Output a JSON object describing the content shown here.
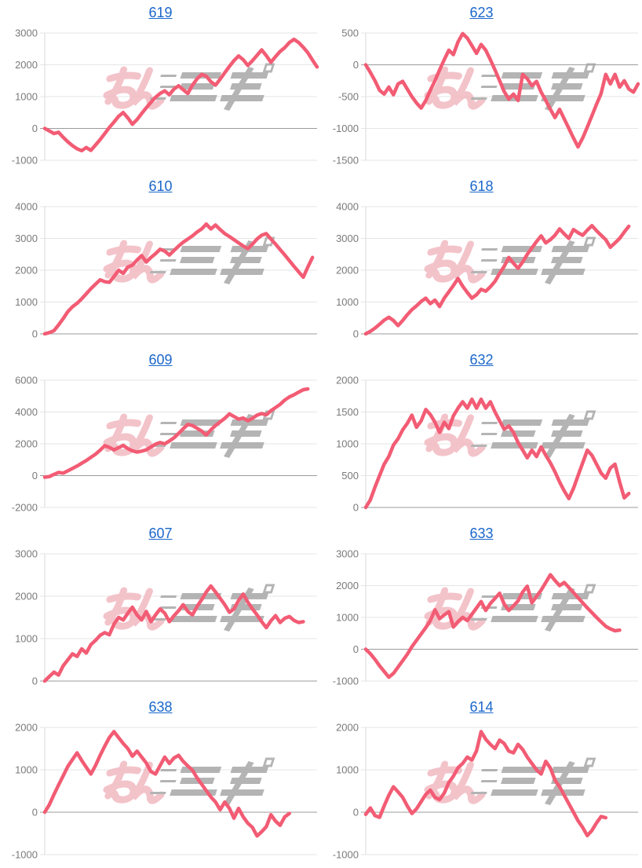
{
  "page": {
    "background": "#ffffff"
  },
  "colors": {
    "line": "#f25c74",
    "title_link": "#1b67ca",
    "tick_label": "#7a7a7a",
    "grid_line": "#e5e5e5",
    "zero_line": "#9b9b9b",
    "axis_line": "#d9d9d9",
    "watermark_pink": "#f2b9c1",
    "watermark_gray": "#a7a7a7"
  },
  "watermark": {
    "left_text": "みん",
    "style": "pink kana + gray speed-lined logo glyphs"
  },
  "chart_data": [
    {
      "type": "line",
      "title": "619",
      "ylim": [
        -1000,
        3000
      ],
      "yticks": [
        3000,
        2000,
        1000,
        0,
        -1000
      ],
      "grid": true,
      "x_axis_labels": "none",
      "legend": "none",
      "values": [
        0,
        -80,
        -160,
        -120,
        -280,
        -420,
        -540,
        -640,
        -700,
        -600,
        -690,
        -520,
        -350,
        -160,
        30,
        200,
        380,
        500,
        330,
        130,
        280,
        470,
        650,
        820,
        980,
        1100,
        1180,
        1060,
        1240,
        1340,
        1220,
        1100,
        1360,
        1560,
        1700,
        1640,
        1470,
        1360,
        1550,
        1750,
        1950,
        2130,
        2280,
        2160,
        1980,
        2130,
        2300,
        2470,
        2290,
        2080,
        2260,
        2420,
        2540,
        2700,
        2800,
        2700,
        2550,
        2380,
        2150,
        1930
      ]
    },
    {
      "type": "line",
      "title": "623",
      "ylim": [
        -1500,
        500
      ],
      "yticks": [
        500,
        0,
        -500,
        -1000,
        -1500
      ],
      "grid": true,
      "x_axis_labels": "none",
      "legend": "none",
      "values": [
        0,
        -120,
        -250,
        -400,
        -460,
        -350,
        -470,
        -300,
        -260,
        -380,
        -500,
        -600,
        -680,
        -560,
        -400,
        -250,
        -80,
        80,
        230,
        160,
        360,
        490,
        420,
        300,
        180,
        320,
        230,
        80,
        -80,
        -250,
        -420,
        -540,
        -460,
        -560,
        -150,
        -220,
        -330,
        -260,
        -430,
        -560,
        -700,
        -830,
        -700,
        -850,
        -1000,
        -1150,
        -1290,
        -1150,
        -980,
        -800,
        -620,
        -450,
        -150,
        -300,
        -150,
        -350,
        -250,
        -380,
        -430,
        -300
      ]
    },
    {
      "type": "line",
      "title": "610",
      "ylim": [
        0,
        4000
      ],
      "yticks": [
        4000,
        3000,
        2000,
        1000,
        0
      ],
      "grid": true,
      "x_axis_labels": "none",
      "legend": "none",
      "values": [
        0,
        40,
        100,
        280,
        480,
        700,
        850,
        960,
        1100,
        1260,
        1420,
        1560,
        1700,
        1640,
        1620,
        1800,
        2000,
        1900,
        2100,
        2160,
        2320,
        2460,
        2260,
        2400,
        2520,
        2660,
        2600,
        2480,
        2620,
        2760,
        2880,
        2980,
        3080,
        3200,
        3300,
        3450,
        3300,
        3420,
        3280,
        3150,
        3060,
        2960,
        2860,
        2760,
        2680,
        2820,
        2980,
        3100,
        3150,
        2980,
        2820,
        2650,
        2480,
        2300,
        2120,
        1950,
        1780,
        2100,
        2400
      ]
    },
    {
      "type": "line",
      "title": "618",
      "ylim": [
        0,
        4000
      ],
      "yticks": [
        4000,
        3000,
        2000,
        1000,
        0
      ],
      "grid": true,
      "x_axis_labels": "none",
      "legend": "none",
      "values": [
        0,
        80,
        180,
        300,
        430,
        520,
        420,
        260,
        420,
        600,
        760,
        880,
        1020,
        1120,
        950,
        1060,
        860,
        1120,
        1320,
        1520,
        1740,
        1500,
        1300,
        1120,
        1230,
        1400,
        1340,
        1480,
        1650,
        1900,
        2120,
        2400,
        2220,
        2060,
        2260,
        2500,
        2700,
        2900,
        3080,
        2860,
        2960,
        3100,
        3300,
        3140,
        3000,
        3280,
        3180,
        3100,
        3260,
        3400,
        3240,
        3100,
        2960,
        2720,
        2860,
        3000,
        3200,
        3380
      ]
    },
    {
      "type": "line",
      "title": "609",
      "ylim": [
        -2000,
        6000
      ],
      "yticks": [
        6000,
        4000,
        2000,
        0,
        -2000
      ],
      "grid": true,
      "x_axis_labels": "none",
      "legend": "none",
      "values": [
        -100,
        -60,
        80,
        200,
        160,
        300,
        450,
        600,
        780,
        950,
        1150,
        1350,
        1600,
        1880,
        1780,
        1620,
        1760,
        1900,
        1700,
        1560,
        1480,
        1540,
        1620,
        1800,
        1980,
        2080,
        2000,
        2180,
        2380,
        2650,
        2950,
        3220,
        3150,
        2980,
        2800,
        2550,
        2880,
        3150,
        3380,
        3600,
        3880,
        3720,
        3550,
        3620,
        3450,
        3600,
        3800,
        3900,
        3820,
        4080,
        4280,
        4480,
        4750,
        4950,
        5080,
        5250,
        5400,
        5450
      ]
    },
    {
      "type": "line",
      "title": "632",
      "ylim": [
        0,
        2000
      ],
      "yticks": [
        2000,
        1500,
        1000,
        500,
        0
      ],
      "grid": true,
      "x_axis_labels": "none",
      "legend": "none",
      "values": [
        0,
        120,
        320,
        500,
        680,
        800,
        980,
        1080,
        1220,
        1320,
        1450,
        1260,
        1360,
        1540,
        1460,
        1340,
        1180,
        1340,
        1240,
        1440,
        1560,
        1660,
        1560,
        1700,
        1560,
        1700,
        1560,
        1660,
        1500,
        1360,
        1230,
        1280,
        1180,
        1020,
        900,
        780,
        900,
        800,
        950,
        820,
        700,
        560,
        400,
        260,
        140,
        300,
        500,
        700,
        900,
        820,
        680,
        540,
        460,
        620,
        680,
        400,
        150,
        220
      ]
    },
    {
      "type": "line",
      "title": "607",
      "ylim": [
        0,
        3000
      ],
      "yticks": [
        3000,
        2000,
        1000,
        0
      ],
      "grid": true,
      "x_axis_labels": "none",
      "legend": "none",
      "values": [
        0,
        110,
        210,
        140,
        360,
        500,
        640,
        580,
        760,
        660,
        860,
        960,
        1080,
        1140,
        1090,
        1340,
        1500,
        1440,
        1600,
        1740,
        1560,
        1440,
        1640,
        1400,
        1560,
        1700,
        1600,
        1400,
        1540,
        1660,
        1800,
        1640,
        1560,
        1760,
        1920,
        2100,
        2240,
        2100,
        1950,
        1800,
        1620,
        1700,
        1900,
        2050,
        1860,
        1700,
        1560,
        1400,
        1260,
        1420,
        1540,
        1380,
        1480,
        1520,
        1430,
        1380,
        1400
      ]
    },
    {
      "type": "line",
      "title": "633",
      "ylim": [
        -1000,
        3000
      ],
      "yticks": [
        3000,
        2000,
        1000,
        0,
        -1000
      ],
      "grid": true,
      "x_axis_labels": "none",
      "legend": "none",
      "values": [
        0,
        -140,
        -320,
        -520,
        -700,
        -880,
        -760,
        -560,
        -360,
        -160,
        80,
        280,
        480,
        680,
        900,
        1240,
        960,
        1080,
        1180,
        700,
        870,
        1000,
        900,
        1100,
        1300,
        1500,
        1220,
        1440,
        1600,
        1760,
        1420,
        1220,
        1360,
        1520,
        1800,
        1980,
        1460,
        1660,
        1860,
        2100,
        2340,
        2160,
        2000,
        2100,
        1940,
        1780,
        1620,
        1460,
        1300,
        1150,
        1000,
        860,
        720,
        640,
        580,
        600
      ]
    },
    {
      "type": "line",
      "title": "638",
      "ylim": [
        -1000,
        2000
      ],
      "yticks": [
        2000,
        1000,
        0,
        -1000
      ],
      "grid": true,
      "x_axis_labels": "none",
      "legend": "none",
      "values": [
        0,
        180,
        420,
        640,
        860,
        1080,
        1240,
        1400,
        1220,
        1060,
        900,
        1100,
        1340,
        1560,
        1760,
        1900,
        1760,
        1620,
        1500,
        1320,
        1440,
        1300,
        1160,
        960,
        900,
        1100,
        1300,
        1150,
        1280,
        1340,
        1200,
        1090,
        990,
        810,
        660,
        510,
        360,
        240,
        60,
        240,
        90,
        -140,
        90,
        -110,
        -260,
        -360,
        -560,
        -460,
        -340,
        -60,
        -210,
        -310,
        -110,
        -30
      ]
    },
    {
      "type": "line",
      "title": "614",
      "ylim": [
        -1000,
        2000
      ],
      "yticks": [
        2000,
        1000,
        0,
        -1000
      ],
      "grid": true,
      "x_axis_labels": "none",
      "legend": "none",
      "values": [
        -50,
        100,
        -80,
        -120,
        150,
        400,
        600,
        480,
        350,
        150,
        -30,
        80,
        250,
        420,
        520,
        350,
        300,
        450,
        700,
        850,
        1050,
        1150,
        1300,
        1230,
        1450,
        1900,
        1720,
        1600,
        1500,
        1700,
        1620,
        1440,
        1400,
        1600,
        1480,
        1300,
        1150,
        1000,
        900,
        1200,
        1040,
        760,
        600,
        400,
        200,
        0,
        -200,
        -360,
        -550,
        -430,
        -250,
        -100,
        -130
      ]
    }
  ]
}
